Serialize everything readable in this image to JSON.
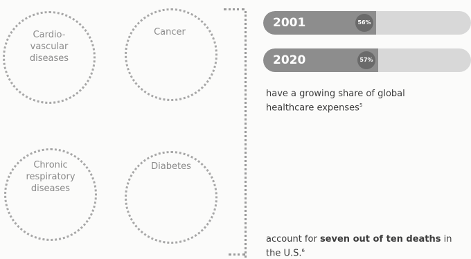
{
  "diseases": [
    {
      "label": "Cardio-\nvascular\ndiseases"
    },
    {
      "label": "Cancer"
    },
    {
      "label": "Chronic\nrespiratory\ndiseases"
    },
    {
      "label": "Diabetes"
    }
  ],
  "bars": [
    {
      "year": "2001",
      "value": 0.56,
      "pct_label": "56%"
    },
    {
      "year": "2020",
      "value": 0.57,
      "pct_label": "57%"
    }
  ],
  "captions": {
    "expenses_text": "have a growing share of global healthcare expenses",
    "expenses_ref": "5",
    "deaths_prefix": "account for ",
    "deaths_bold": "seven out of ten deaths",
    "deaths_suffix": " in the U.S.",
    "deaths_ref": "6"
  }
}
